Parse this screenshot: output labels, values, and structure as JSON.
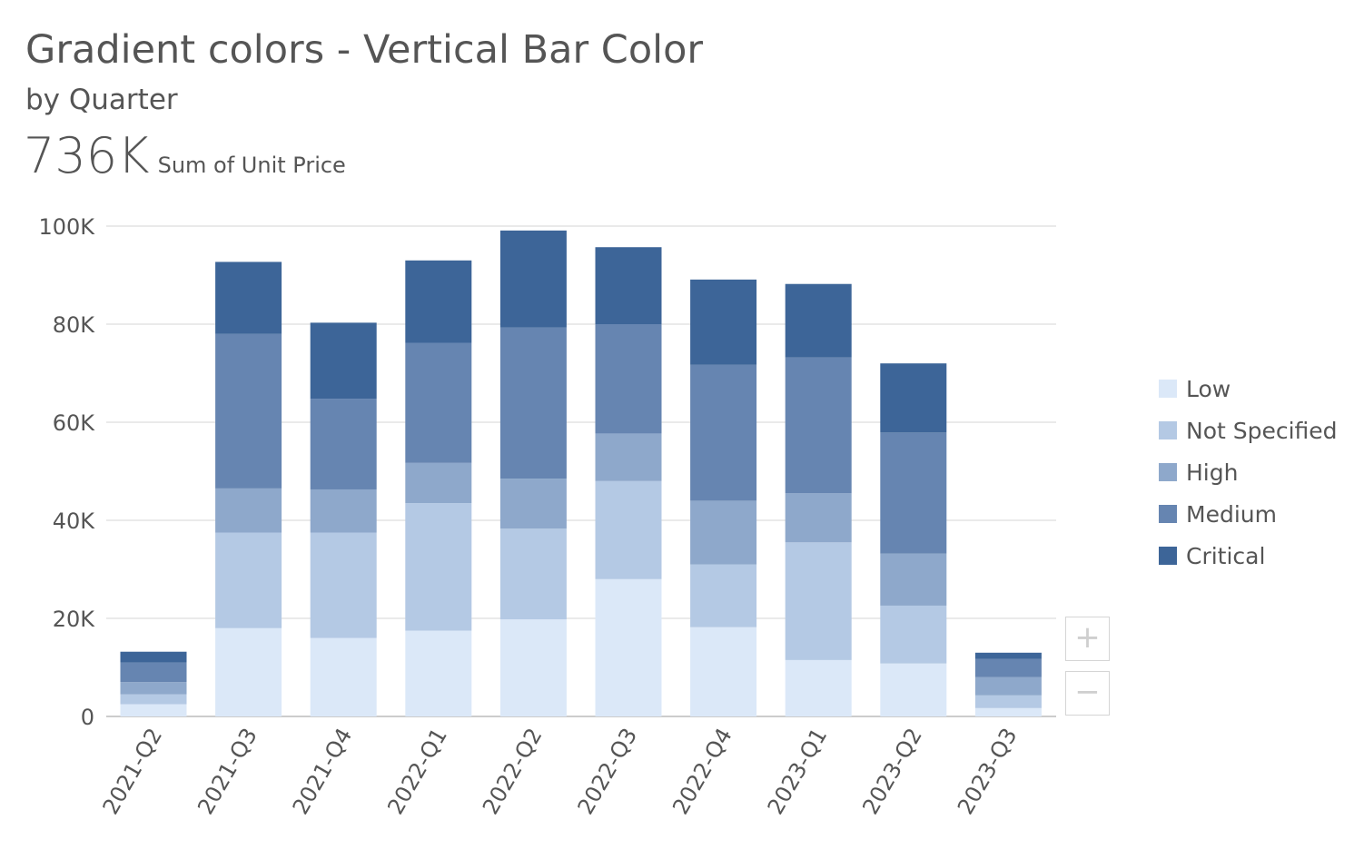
{
  "header": {
    "title": "Gradient colors - Vertical Bar Color",
    "subtitle": "by Quarter",
    "kpi_value": "736K",
    "kpi_label": "Sum of Unit Price"
  },
  "zoom": {
    "zoom_in_label": "+",
    "zoom_out_label": "−"
  },
  "chart_data": {
    "type": "bar",
    "stacked": true,
    "title": "Gradient colors - Vertical Bar Color",
    "subtitle": "by Quarter",
    "xlabel": "",
    "ylabel": "",
    "ylim": [
      0,
      100000
    ],
    "yticks": [
      0,
      20000,
      40000,
      60000,
      80000,
      100000
    ],
    "ytick_labels": [
      "0",
      "20K",
      "40K",
      "60K",
      "80K",
      "100K"
    ],
    "grid": true,
    "legend_position": "right",
    "categories": [
      "2021-Q2",
      "2021-Q3",
      "2021-Q4",
      "2022-Q1",
      "2022-Q2",
      "2022-Q3",
      "2022-Q4",
      "2023-Q1",
      "2023-Q2",
      "2023-Q3"
    ],
    "series": [
      {
        "name": "Low",
        "color": "#dbe8f8",
        "values": [
          2500,
          18000,
          16000,
          17500,
          19800,
          28000,
          18200,
          11500,
          10800,
          1700
        ]
      },
      {
        "name": "Not Specified",
        "color": "#b4c9e4",
        "values": [
          2000,
          19500,
          21500,
          26000,
          18500,
          20000,
          12800,
          24000,
          11800,
          2600
        ]
      },
      {
        "name": "High",
        "color": "#8ea8cb",
        "values": [
          2500,
          9000,
          8800,
          8200,
          10200,
          9700,
          13000,
          10000,
          10600,
          3700
        ]
      },
      {
        "name": "Medium",
        "color": "#6685b1",
        "values": [
          4000,
          31500,
          18500,
          24500,
          30800,
          22300,
          27700,
          27700,
          24700,
          3700
        ]
      },
      {
        "name": "Critical",
        "color": "#3d6598",
        "values": [
          2200,
          14700,
          15500,
          16800,
          19800,
          15700,
          17400,
          15000,
          14100,
          1300
        ]
      }
    ]
  }
}
